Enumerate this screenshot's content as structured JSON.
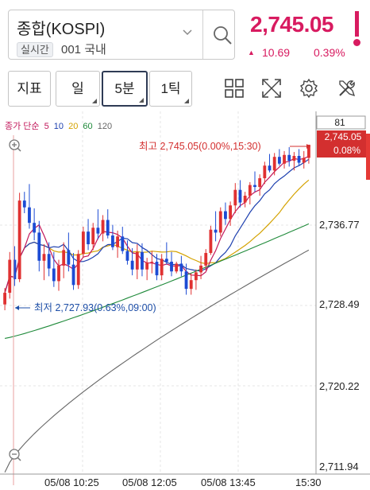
{
  "symbol": {
    "name": "종합(KOSPI)",
    "tag": "실시간",
    "code": "001 국내"
  },
  "quote": {
    "price": "2,745.05",
    "change": "10.69",
    "change_pct": "0.39%",
    "change_arrow": "▲"
  },
  "toolbar": {
    "indicator_label": "지표",
    "period_day_label": "일",
    "period_5min_label": "5분",
    "period_tick_label": "1틱"
  },
  "legend": {
    "title": "종가 단순",
    "ma": [
      {
        "label": "5",
        "color": "#c2185b"
      },
      {
        "label": "10",
        "color": "#1e40af"
      },
      {
        "label": "20",
        "color": "#d4a200"
      },
      {
        "label": "60",
        "color": "#1f8a3a"
      },
      {
        "label": "120",
        "color": "#666666"
      }
    ]
  },
  "chart_labels": {
    "top_value_box": "81",
    "current_price_box": "2,745.05",
    "current_pct_box": "0.08%",
    "high_note": "최고 2,745.05(0.00%,15:30)",
    "low_note": "최저 2,727.93(0.63%,09:00)"
  },
  "chart_data": {
    "type": "candlestick",
    "y_ticks": [
      "2,736.77",
      "2,728.49",
      "2,720.22",
      "2,711.94"
    ],
    "x_ticks": [
      "05/08 10:25",
      "05/08 12:05",
      "05/08 13:45",
      "15:30"
    ],
    "ylim": [
      2711.94,
      2747.5
    ],
    "candles": [
      [
        2728.6,
        2730.3,
        2728.0,
        2729.8
      ],
      [
        2729.8,
        2734.0,
        2729.2,
        2733.2
      ],
      [
        2733.2,
        2734.6,
        2730.5,
        2731.2
      ],
      [
        2731.2,
        2740.1,
        2730.9,
        2739.3
      ],
      [
        2739.3,
        2740.2,
        2738.0,
        2738.6
      ],
      [
        2738.6,
        2741.0,
        2736.4,
        2737.0
      ],
      [
        2737.0,
        2738.5,
        2735.2,
        2736.0
      ],
      [
        2736.0,
        2737.2,
        2732.0,
        2733.1
      ],
      [
        2733.1,
        2734.8,
        2731.1,
        2733.8
      ],
      [
        2733.8,
        2735.0,
        2731.5,
        2732.3
      ],
      [
        2732.3,
        2734.0,
        2730.4,
        2731.0
      ],
      [
        2731.0,
        2733.2,
        2730.0,
        2732.6
      ],
      [
        2732.6,
        2735.0,
        2731.3,
        2734.2
      ],
      [
        2734.2,
        2736.0,
        2732.0,
        2732.7
      ],
      [
        2732.7,
        2733.9,
        2730.1,
        2730.6
      ],
      [
        2730.6,
        2734.2,
        2730.2,
        2733.8
      ],
      [
        2733.8,
        2736.6,
        2733.4,
        2736.1
      ],
      [
        2736.1,
        2737.4,
        2734.2,
        2734.8
      ],
      [
        2734.8,
        2737.0,
        2734.2,
        2736.5
      ],
      [
        2736.5,
        2738.4,
        2735.3,
        2735.9
      ],
      [
        2735.9,
        2737.8,
        2735.1,
        2737.3
      ],
      [
        2737.3,
        2738.4,
        2735.4,
        2735.7
      ],
      [
        2735.7,
        2736.8,
        2734.2,
        2734.5
      ],
      [
        2734.5,
        2736.2,
        2733.4,
        2735.6
      ],
      [
        2735.6,
        2736.6,
        2733.8,
        2734.1
      ],
      [
        2734.1,
        2735.2,
        2732.7,
        2733.1
      ],
      [
        2733.1,
        2734.4,
        2731.6,
        2732.2
      ],
      [
        2732.2,
        2734.8,
        2731.2,
        2734.0
      ],
      [
        2734.0,
        2734.9,
        2731.5,
        2732.2
      ],
      [
        2732.2,
        2733.4,
        2731.1,
        2732.9
      ],
      [
        2732.9,
        2734.1,
        2731.8,
        2733.0
      ],
      [
        2733.0,
        2733.8,
        2731.1,
        2731.6
      ],
      [
        2731.6,
        2733.8,
        2731.1,
        2733.3
      ],
      [
        2733.3,
        2735.0,
        2732.7,
        2733.0
      ],
      [
        2733.0,
        2734.0,
        2731.5,
        2732.0
      ],
      [
        2732.0,
        2733.0,
        2731.8,
        2732.8
      ],
      [
        2732.8,
        2733.6,
        2731.5,
        2732.0
      ],
      [
        2732.0,
        2732.8,
        2729.6,
        2730.2
      ],
      [
        2730.2,
        2731.8,
        2729.6,
        2731.1
      ],
      [
        2731.1,
        2732.2,
        2730.1,
        2731.9
      ],
      [
        2731.9,
        2733.6,
        2731.2,
        2732.6
      ],
      [
        2732.6,
        2734.3,
        2732.1,
        2733.9
      ],
      [
        2733.9,
        2736.7,
        2733.7,
        2736.3
      ],
      [
        2736.3,
        2738.2,
        2735.1,
        2736.0
      ],
      [
        2736.0,
        2738.6,
        2735.6,
        2738.2
      ],
      [
        2738.2,
        2739.1,
        2736.8,
        2737.4
      ],
      [
        2737.4,
        2739.2,
        2736.7,
        2738.8
      ],
      [
        2738.8,
        2741.1,
        2738.0,
        2740.4
      ],
      [
        2740.4,
        2741.4,
        2738.6,
        2739.1
      ],
      [
        2739.1,
        2740.2,
        2738.6,
        2739.8
      ],
      [
        2739.8,
        2741.2,
        2738.9,
        2740.9
      ],
      [
        2740.9,
        2742.3,
        2740.2,
        2740.7
      ],
      [
        2740.7,
        2742.0,
        2739.8,
        2741.6
      ],
      [
        2741.6,
        2743.3,
        2741.0,
        2742.9
      ],
      [
        2742.9,
        2744.1,
        2742.2,
        2742.4
      ],
      [
        2742.4,
        2744.2,
        2741.9,
        2743.8
      ],
      [
        2743.8,
        2744.6,
        2742.9,
        2743.1
      ],
      [
        2743.1,
        2744.4,
        2742.6,
        2744.0
      ],
      [
        2744.0,
        2744.8,
        2742.8,
        2743.4
      ],
      [
        2743.4,
        2744.3,
        2742.4,
        2743.9
      ],
      [
        2743.9,
        2744.6,
        2742.9,
        2743.2
      ],
      [
        2743.2,
        2744.4,
        2742.6,
        2743.7
      ],
      [
        2743.7,
        2745.05,
        2743.1,
        2745.05
      ]
    ]
  }
}
